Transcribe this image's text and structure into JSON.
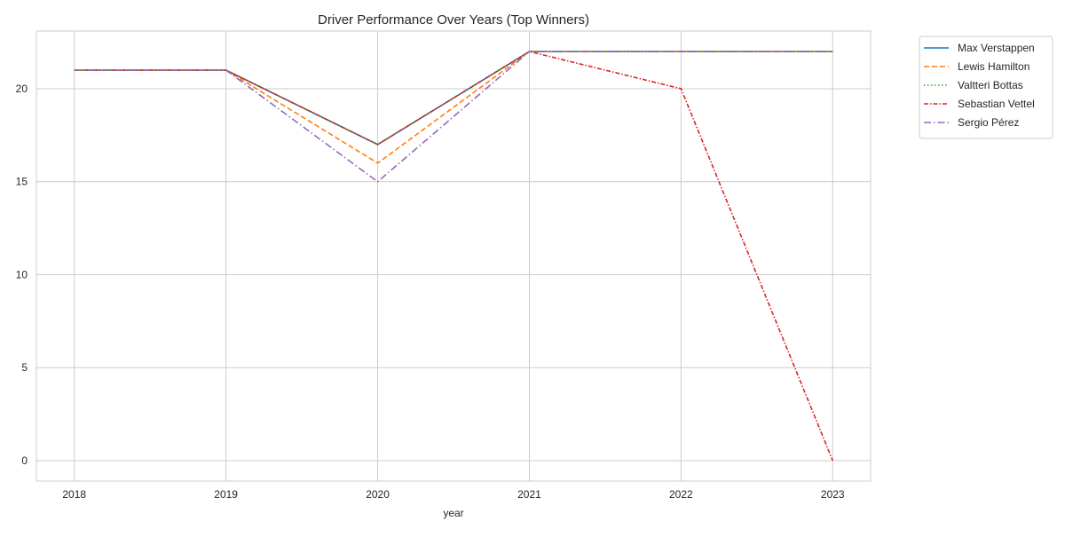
{
  "chart_data": {
    "type": "line",
    "title": "Driver Performance Over Years (Top Winners)",
    "xlabel": "year",
    "ylabel": "",
    "x": [
      2018,
      2019,
      2020,
      2021,
      2022,
      2023
    ],
    "xticks": [
      "2018",
      "2019",
      "2020",
      "2021",
      "2022",
      "2023"
    ],
    "yticks": [
      0,
      5,
      10,
      15,
      20
    ],
    "xlim": [
      2017.75,
      2023.25
    ],
    "ylim": [
      -1.1,
      23.1
    ],
    "grid": true,
    "legend_position": "outside-top-right",
    "series": [
      {
        "name": "Max Verstappen",
        "color": "#1f77b4",
        "dash": "solid",
        "values": [
          21,
          21,
          17,
          22,
          22,
          22
        ]
      },
      {
        "name": "Lewis Hamilton",
        "color": "#ff7f0e",
        "dash": "dashed",
        "values": [
          21,
          21,
          16,
          22,
          22,
          22
        ]
      },
      {
        "name": "Valtteri Bottas",
        "color": "#2ca02c",
        "dash": "dotted",
        "values": [
          21,
          21,
          17,
          22,
          22,
          22
        ]
      },
      {
        "name": "Sebastian Vettel",
        "color": "#d62728",
        "dash": "dashdot-dense",
        "values": [
          21,
          21,
          17,
          22,
          20,
          0
        ]
      },
      {
        "name": "Sergio Pérez",
        "color": "#9467bd",
        "dash": "dashdot",
        "values": [
          21,
          21,
          15,
          22,
          22,
          22
        ]
      }
    ]
  }
}
